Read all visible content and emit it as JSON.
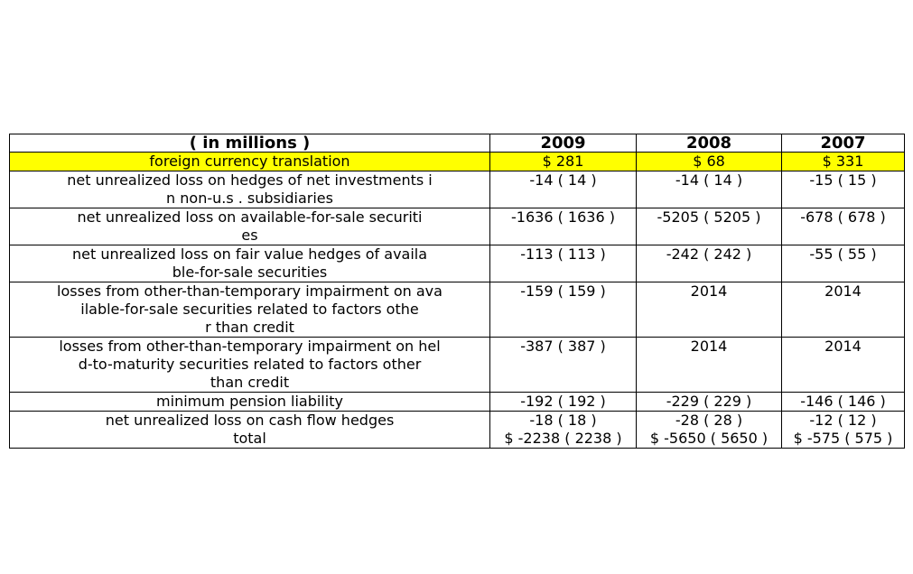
{
  "table": {
    "header": [
      "( in millions )",
      "2009",
      "2008",
      "2007"
    ],
    "highlight_color": "#ffff00",
    "rows": [
      {
        "label": [
          "foreign currency translation"
        ],
        "v2009": [
          "$ 281"
        ],
        "v2008": [
          "$ 68"
        ],
        "v2007": [
          "$ 331"
        ]
      },
      {
        "label": [
          "net unrealized loss on hedges of net investments i",
          "n non-u.s . subsidiaries"
        ],
        "v2009": [
          "-14 ( 14 )"
        ],
        "v2008": [
          "-14 ( 14 )"
        ],
        "v2007": [
          "-15 ( 15 )"
        ]
      },
      {
        "label": [
          "net unrealized loss on available-for-sale securiti",
          "es"
        ],
        "v2009": [
          "-1636 ( 1636 )"
        ],
        "v2008": [
          "-5205 ( 5205 )"
        ],
        "v2007": [
          "-678 ( 678 )"
        ]
      },
      {
        "label": [
          "net unrealized loss on fair value hedges of availa",
          "ble-for-sale securities"
        ],
        "v2009": [
          "-113 ( 113 )"
        ],
        "v2008": [
          "-242 ( 242 )"
        ],
        "v2007": [
          "-55 ( 55 )"
        ]
      },
      {
        "label": [
          "losses from other-than-temporary impairment on ava",
          "ilable-for-sale securities related to factors othe",
          "r than credit"
        ],
        "v2009": [
          "-159 ( 159 )"
        ],
        "v2008": [
          "2014"
        ],
        "v2007": [
          "2014"
        ]
      },
      {
        "label": [
          "losses from other-than-temporary impairment on hel",
          "d-to-maturity securities related to factors other",
          "than credit"
        ],
        "v2009": [
          "-387 ( 387 )"
        ],
        "v2008": [
          "2014"
        ],
        "v2007": [
          "2014"
        ]
      },
      {
        "label": [
          "minimum pension liability"
        ],
        "v2009": [
          "-192 ( 192 )"
        ],
        "v2008": [
          "-229 ( 229 )"
        ],
        "v2007": [
          "-146 ( 146 )"
        ]
      },
      {
        "label": [
          "net unrealized loss on cash flow hedges",
          "total"
        ],
        "v2009": [
          "-18 ( 18 )",
          "$ -2238 ( 2238 )"
        ],
        "v2008": [
          "-28 ( 28 )",
          "$ -5650 ( 5650 )"
        ],
        "v2007": [
          "-12 ( 12 )",
          "$ -575 ( 575 )"
        ]
      }
    ]
  }
}
